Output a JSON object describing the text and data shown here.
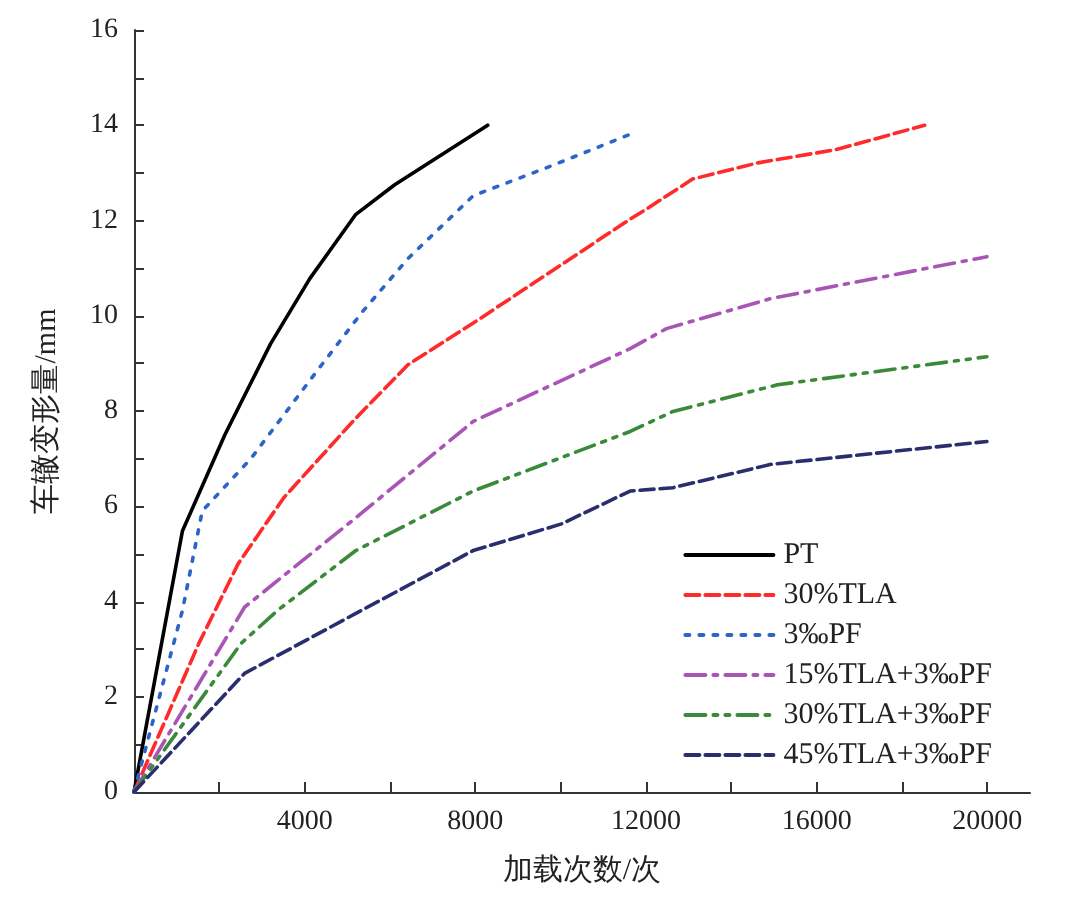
{
  "chart_data": {
    "type": "line",
    "xlabel": "加载次数/次",
    "ylabel": "车辙变形量/mm",
    "legend": "bottom right",
    "grid": false,
    "marker": "none",
    "xlim": [
      0,
      21000
    ],
    "ylim": [
      0,
      16
    ],
    "xticks": [
      {
        "value": 2000,
        "label": null
      },
      4000,
      {
        "value": 6000,
        "label": null
      },
      8000,
      {
        "value": 10000,
        "label": null
      },
      12000,
      {
        "value": 14000,
        "label": null
      },
      16000,
      {
        "value": 18000,
        "label": null
      },
      20000
    ],
    "yticks": [
      0,
      {
        "value": 1,
        "label": null
      },
      2,
      {
        "value": 3,
        "label": null
      },
      4,
      {
        "value": 5,
        "label": null
      },
      6,
      {
        "value": 7,
        "label": null
      },
      8,
      {
        "value": 9,
        "label": null
      },
      10,
      {
        "value": 11,
        "label": null
      },
      12,
      {
        "value": 13,
        "label": null
      },
      14,
      {
        "value": 15,
        "label": null
      },
      16
    ],
    "series": [
      {
        "name": "PT",
        "color": "#000000",
        "line_style": "solid",
        "x": [
          0,
          1135,
          2130,
          3200,
          4120,
          5200,
          6110,
          8290
        ],
        "values": [
          0,
          5.48,
          7.5,
          9.41,
          10.78,
          12.13,
          12.75,
          14.0
        ]
      },
      {
        "name": "30%TLA",
        "color": "#ff2a2a",
        "line_style": "dashed",
        "x": [
          0,
          1520,
          2440,
          3510,
          5200,
          6420,
          8110,
          11630,
          12010,
          13090,
          14620,
          16460,
          18530
        ],
        "values": [
          0,
          3.12,
          4.79,
          6.18,
          7.85,
          8.97,
          9.94,
          12.03,
          12.24,
          12.87,
          13.21,
          13.49,
          14.0
        ]
      },
      {
        "name": "3‰PF",
        "color": "#2d64c8",
        "line_style": "dotted",
        "x": [
          0,
          1135,
          1600,
          2740,
          4280,
          5350,
          6420,
          7950,
          9790,
          11630
        ],
        "values": [
          0,
          3.81,
          5.9,
          7.0,
          8.83,
          10.08,
          11.2,
          12.52,
          13.15,
          13.81
        ]
      },
      {
        "name": "15%TLA+3‰PF",
        "color": "#a855b5",
        "line_style": "dashdot",
        "x": [
          0,
          2590,
          5200,
          7950,
          11630,
          12480,
          14920,
          17690,
          19990
        ],
        "values": [
          0,
          3.88,
          5.76,
          7.78,
          9.31,
          9.73,
          10.36,
          10.84,
          11.24
        ]
      },
      {
        "name": "30%TLA+3‰PF",
        "color": "#3a8a3a",
        "line_style": "dashdotdot",
        "x": [
          0,
          2510,
          3360,
          5200,
          7950,
          11630,
          12630,
          15080,
          19990
        ],
        "values": [
          0,
          3.12,
          3.81,
          5.07,
          6.32,
          7.57,
          7.99,
          8.55,
          9.14
        ]
      },
      {
        "name": "45%TLA+3‰PF",
        "color": "#2b2e6e",
        "line_style": "dashed",
        "x": [
          0,
          2590,
          5200,
          7950,
          10020,
          11630,
          12630,
          14930,
          19990
        ],
        "values": [
          0,
          2.49,
          3.75,
          5.07,
          5.63,
          6.32,
          6.39,
          6.88,
          7.36
        ]
      }
    ]
  }
}
